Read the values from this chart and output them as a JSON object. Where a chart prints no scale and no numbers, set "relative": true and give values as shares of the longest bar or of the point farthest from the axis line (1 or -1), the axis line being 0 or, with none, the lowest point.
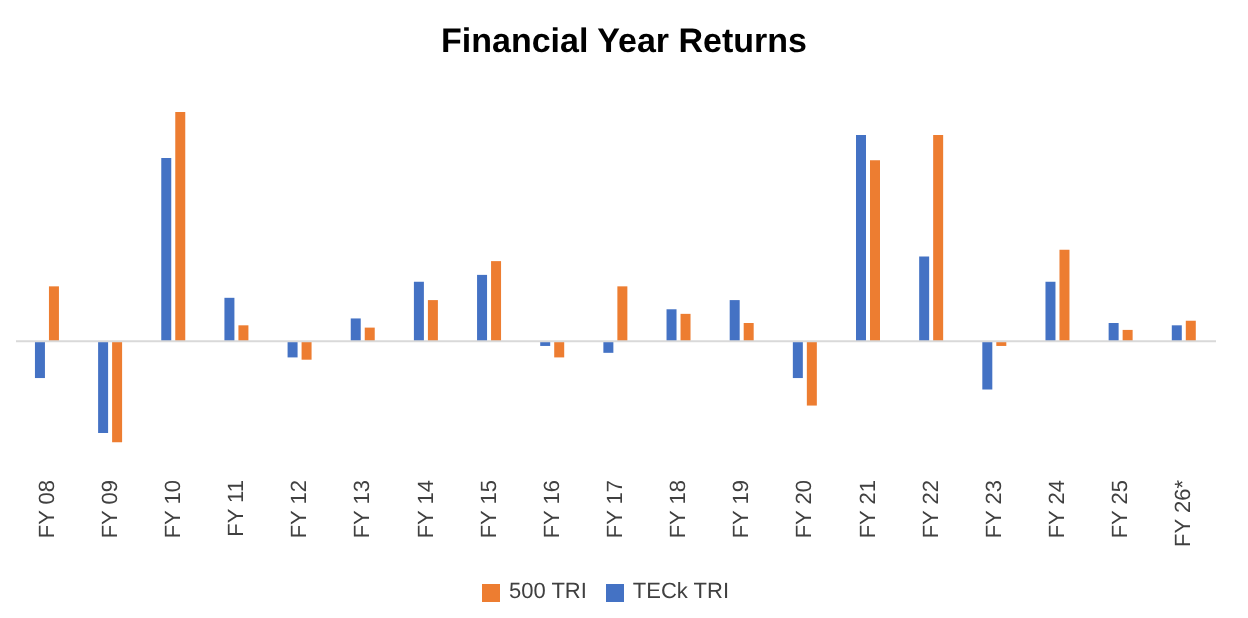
{
  "chart_data": {
    "type": "bar",
    "title": "Financial Year Returns",
    "relative": true,
    "legend": "bottom",
    "categories": [
      "FY 08",
      "FY 09",
      "FY 10",
      "FY 11",
      "FY 12",
      "FY 13",
      "FY 14",
      "FY 15",
      "FY 16",
      "FY 17",
      "FY 18",
      "FY 19",
      "FY 20",
      "FY 21",
      "FY 22",
      "FY 23",
      "FY 24",
      "FY 25",
      "FY 26*"
    ],
    "series": [
      {
        "name": "TECk TRI",
        "color": "#4472c4",
        "values": [
          -0.16,
          -0.4,
          0.8,
          0.19,
          -0.07,
          0.1,
          0.26,
          0.29,
          -0.02,
          -0.05,
          0.14,
          0.18,
          -0.16,
          0.9,
          0.37,
          -0.21,
          0.26,
          0.08,
          0.07
        ]
      },
      {
        "name": "500 TRI",
        "color": "#ed7d31",
        "values": [
          0.24,
          -0.44,
          1,
          0.07,
          -0.08,
          0.06,
          0.18,
          0.35,
          -0.07,
          0.24,
          0.12,
          0.08,
          -0.28,
          0.79,
          0.9,
          -0.02,
          0.4,
          0.05,
          0.09
        ]
      }
    ]
  }
}
